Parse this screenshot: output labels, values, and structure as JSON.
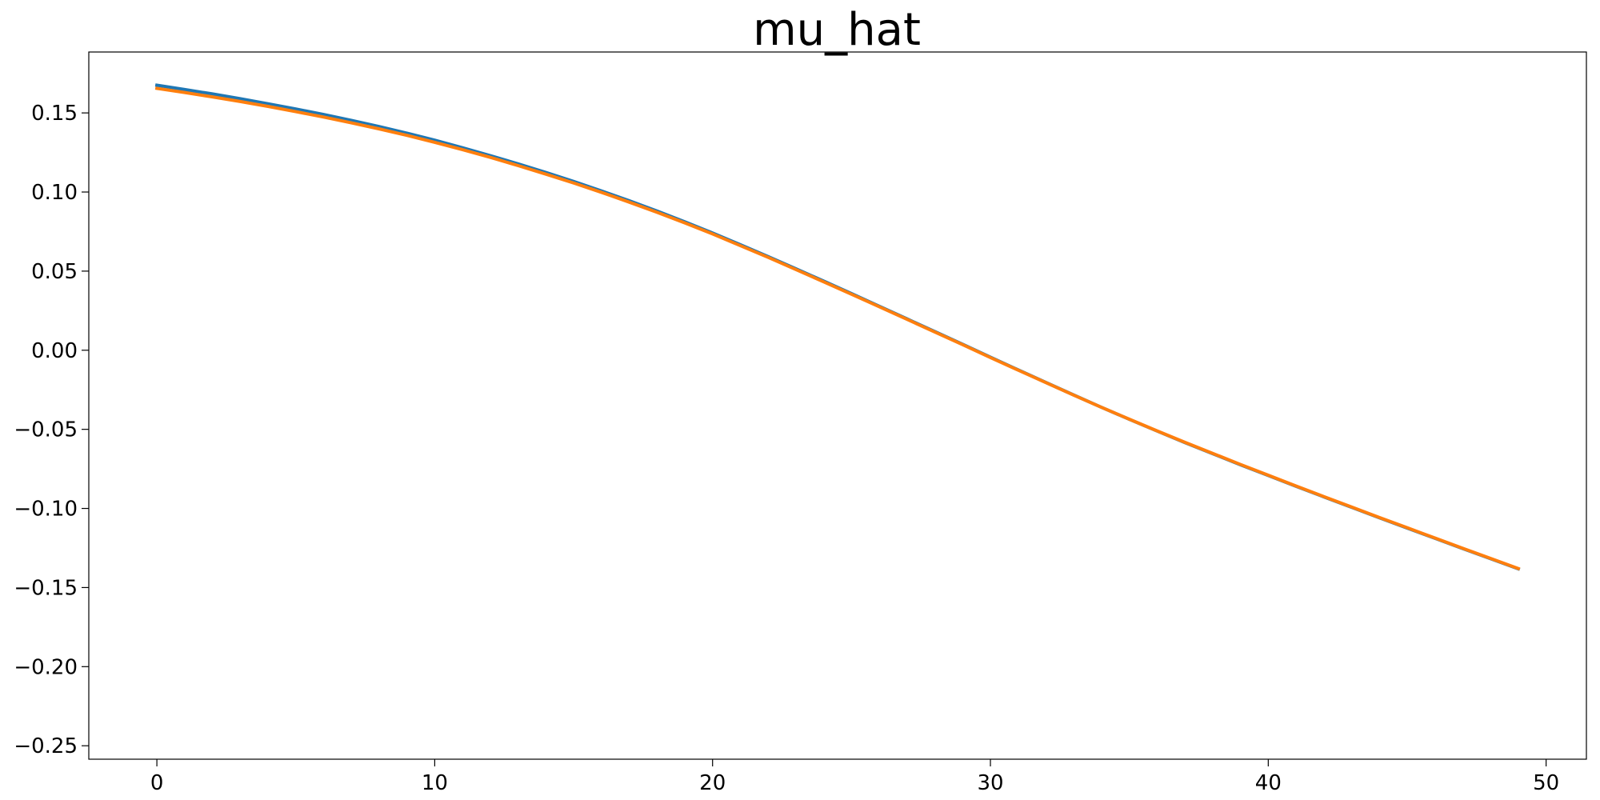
{
  "chart_data": {
    "type": "line",
    "title": "mu_hat",
    "xlabel": "",
    "ylabel": "",
    "xlim": [
      -2.45,
      51.45
    ],
    "ylim": [
      -0.2585,
      0.1885
    ],
    "x_ticks": [
      0,
      10,
      20,
      30,
      40,
      50
    ],
    "x_tick_labels": [
      "0",
      "10",
      "20",
      "30",
      "40",
      "50"
    ],
    "y_ticks": [
      0.15,
      0.1,
      0.05,
      0.0,
      -0.05,
      -0.1,
      -0.15,
      -0.2,
      -0.25
    ],
    "y_tick_labels": [
      "0.15",
      "0.10",
      "0.05",
      "0.00",
      "−0.05",
      "−0.10",
      "−0.15",
      "−0.20",
      "−0.25"
    ],
    "grid": false,
    "legend": "none",
    "x": [
      0,
      1,
      2,
      3,
      4,
      5,
      6,
      7,
      8,
      9,
      10,
      11,
      12,
      13,
      14,
      15,
      16,
      17,
      18,
      19,
      20,
      21,
      22,
      23,
      24,
      25,
      26,
      27,
      28,
      29,
      30,
      31,
      32,
      33,
      34,
      35,
      36,
      37,
      38,
      39,
      40,
      41,
      42,
      43,
      44,
      45,
      46,
      47,
      48,
      49
    ],
    "series": [
      {
        "color": "#1f77b4",
        "values": [
          0.1675,
          0.1648,
          0.162,
          0.159,
          0.1558,
          0.1525,
          0.149,
          0.1453,
          0.1414,
          0.1372,
          0.1328,
          0.128,
          0.123,
          0.1178,
          0.1124,
          0.1067,
          0.1007,
          0.0945,
          0.088,
          0.0812,
          0.0741,
          0.0667,
          0.0592,
          0.0515,
          0.0437,
          0.0358,
          0.0278,
          0.0198,
          0.0118,
          0.0038,
          -0.0044,
          -0.0124,
          -0.0204,
          -0.0283,
          -0.0361,
          -0.0437,
          -0.0511,
          -0.0584,
          -0.0654,
          -0.0724,
          -0.0792,
          -0.086,
          -0.0927,
          -0.0993,
          -0.1059,
          -0.1124,
          -0.1189,
          -0.1254,
          -0.1318,
          -0.1382
        ]
      },
      {
        "color": "#ff7f0e",
        "values": [
          0.1655,
          0.1629,
          0.1601,
          0.1572,
          0.1541,
          0.1508,
          0.1474,
          0.1437,
          0.1399,
          0.1358,
          0.1314,
          0.1268,
          0.1219,
          0.1167,
          0.1113,
          0.1057,
          0.0998,
          0.0936,
          0.0872,
          0.0805,
          0.0735,
          0.0661,
          0.0587,
          0.051,
          0.0432,
          0.0354,
          0.0275,
          0.0195,
          0.0115,
          0.0035,
          -0.0046,
          -0.0126,
          -0.0205,
          -0.0284,
          -0.0361,
          -0.0436,
          -0.051,
          -0.0582,
          -0.0652,
          -0.0722,
          -0.079,
          -0.0858,
          -0.0925,
          -0.0991,
          -0.1057,
          -0.1122,
          -0.1187,
          -0.1252,
          -0.1316,
          -0.138
        ]
      }
    ]
  }
}
